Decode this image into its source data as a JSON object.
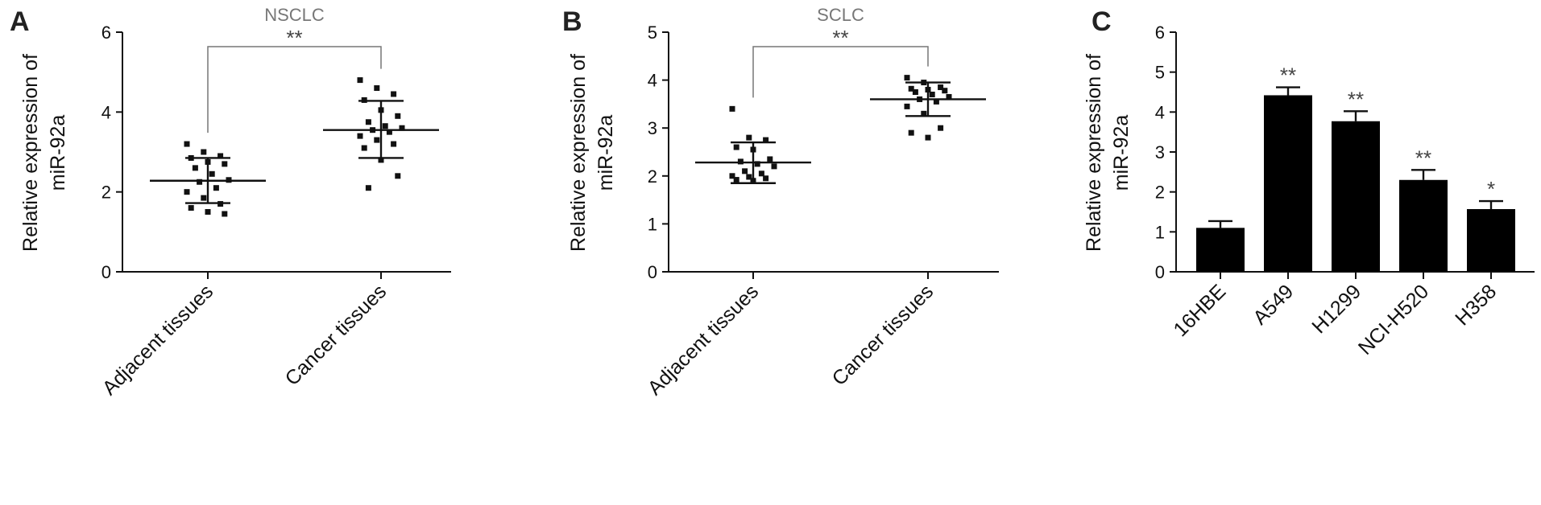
{
  "chart_data": [
    {
      "panel": "A",
      "type": "scatter",
      "title": "NSCLC",
      "ylabel": [
        "Relative expression  of",
        "miR-92a"
      ],
      "ylim": [
        0,
        6
      ],
      "yticks": [
        0,
        2,
        4,
        6
      ],
      "categories": [
        "Adjacent tissues",
        "Cancer tissues"
      ],
      "groups": [
        {
          "name": "Adjacent tissues",
          "mean": 2.28,
          "sd_low": 1.72,
          "sd_high": 2.85,
          "points": [
            3.2,
            3.0,
            2.9,
            2.85,
            2.75,
            2.7,
            2.6,
            2.45,
            2.3,
            2.25,
            2.1,
            2.0,
            1.85,
            1.7,
            1.6,
            1.5,
            1.45
          ]
        },
        {
          "name": "Cancer tissues",
          "mean": 3.55,
          "sd_low": 2.85,
          "sd_high": 4.28,
          "points": [
            4.8,
            4.6,
            4.45,
            4.3,
            4.05,
            3.9,
            3.75,
            3.65,
            3.6,
            3.55,
            3.5,
            3.4,
            3.3,
            3.2,
            3.1,
            2.8,
            2.4,
            2.1
          ]
        }
      ],
      "significance": "**"
    },
    {
      "panel": "B",
      "type": "scatter",
      "title": "SCLC",
      "ylabel": [
        "Relative expression  of",
        "miR-92a"
      ],
      "ylim": [
        0,
        5
      ],
      "yticks": [
        0,
        1,
        2,
        3,
        4,
        5
      ],
      "categories": [
        "Adjacent tissues",
        "Cancer tissues"
      ],
      "groups": [
        {
          "name": "Adjacent tissues",
          "mean": 2.28,
          "sd_low": 1.85,
          "sd_high": 2.7,
          "points": [
            3.4,
            2.8,
            2.75,
            2.6,
            2.55,
            2.35,
            2.3,
            2.25,
            2.2,
            2.1,
            2.05,
            2.0,
            1.98,
            1.95,
            1.92,
            1.9
          ]
        },
        {
          "name": "Cancer tissues",
          "mean": 3.6,
          "sd_low": 3.25,
          "sd_high": 3.95,
          "points": [
            4.05,
            3.95,
            3.85,
            3.82,
            3.8,
            3.78,
            3.75,
            3.7,
            3.65,
            3.6,
            3.55,
            3.45,
            3.3,
            3.0,
            2.9,
            2.8
          ]
        }
      ],
      "significance": "**"
    },
    {
      "panel": "C",
      "type": "bar",
      "ylabel": [
        "Relative expression of",
        "miR-92a"
      ],
      "ylim": [
        0,
        6
      ],
      "yticks": [
        0,
        1,
        2,
        3,
        4,
        5,
        6
      ],
      "categories": [
        "16HBE",
        "A549",
        "H1299",
        "NCI-H520",
        "H358"
      ],
      "values": [
        1.1,
        4.42,
        3.77,
        2.3,
        1.57
      ],
      "errors": [
        0.17,
        0.2,
        0.25,
        0.25,
        0.2
      ],
      "significance": [
        "",
        "**",
        "**",
        "**",
        "*"
      ]
    }
  ]
}
